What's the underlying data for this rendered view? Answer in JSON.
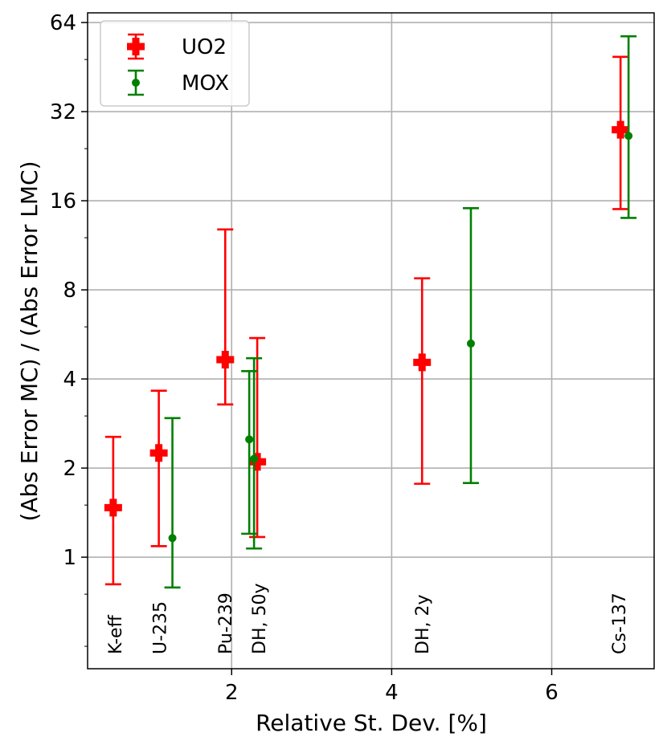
{
  "chart_data": {
    "type": "scatter",
    "title": "",
    "xlabel": "Relative St. Dev. [%]",
    "ylabel": "(Abs Error MC) / (Abs Error LMC)",
    "xlim": [
      0.2,
      7.28
    ],
    "ylim": [
      0.42,
      69.0
    ],
    "yscale": "log2",
    "xticks": [
      2,
      4,
      6
    ],
    "xtick_labels": [
      "2",
      "4",
      "6"
    ],
    "yticks": [
      1,
      2,
      4,
      8,
      16,
      32,
      64
    ],
    "ytick_labels": [
      "1",
      "2",
      "4",
      "8",
      "16",
      "32",
      "64"
    ],
    "grid": true,
    "legend_position": "top-left",
    "series": [
      {
        "name": "UO2",
        "color": "#ff0000",
        "marker": "plus-filled",
        "points": [
          {
            "x": 0.52,
            "y": 1.47,
            "ylow": 0.81,
            "yhigh": 2.55
          },
          {
            "x": 1.09,
            "y": 2.25,
            "ylow": 1.09,
            "yhigh": 3.65
          },
          {
            "x": 1.92,
            "y": 4.65,
            "ylow": 3.28,
            "yhigh": 12.8
          },
          {
            "x": 2.32,
            "y": 2.1,
            "ylow": 1.17,
            "yhigh": 5.5
          },
          {
            "x": 4.38,
            "y": 4.55,
            "ylow": 1.77,
            "yhigh": 8.75
          },
          {
            "x": 6.86,
            "y": 27.8,
            "ylow": 15.0,
            "yhigh": 49.0
          }
        ]
      },
      {
        "name": "MOX",
        "color": "#008000",
        "marker": "dot",
        "points": [
          {
            "x": 1.26,
            "y": 1.16,
            "ylow": 0.79,
            "yhigh": 2.95
          },
          {
            "x": 2.22,
            "y": 2.5,
            "ylow": 1.2,
            "yhigh": 4.25
          },
          {
            "x": 2.28,
            "y": 2.15,
            "ylow": 1.07,
            "yhigh": 4.7
          },
          {
            "x": 4.99,
            "y": 5.27,
            "ylow": 1.78,
            "yhigh": 15.1
          },
          {
            "x": 6.96,
            "y": 26.5,
            "ylow": 14.0,
            "yhigh": 57.5
          }
        ]
      }
    ],
    "annotations": [
      {
        "text": "K-eff",
        "x": 0.62
      },
      {
        "text": "U-235",
        "x": 1.18
      },
      {
        "text": "Pu-239",
        "x": 2.0
      },
      {
        "text": "DH, 50y",
        "x": 2.42
      },
      {
        "text": "DH, 2y",
        "x": 4.46
      },
      {
        "text": "Cs-137",
        "x": 6.92
      }
    ]
  }
}
